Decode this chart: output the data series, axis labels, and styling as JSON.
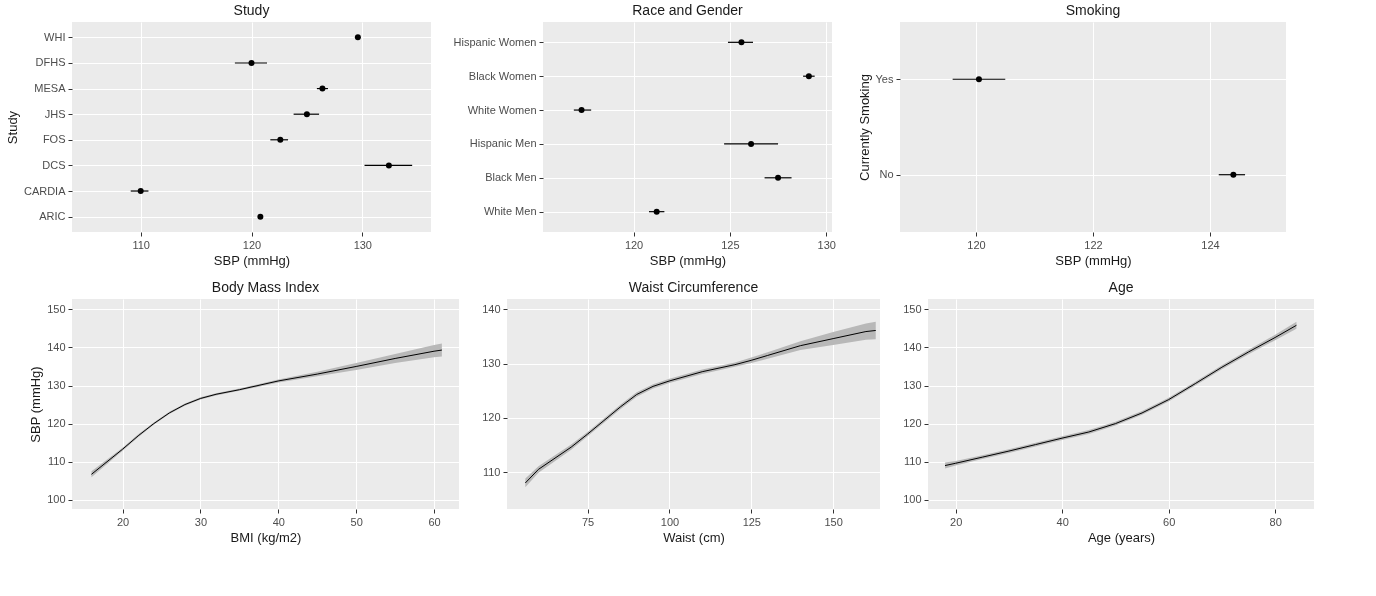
{
  "chart_data": [
    {
      "type": "scatter",
      "orientation": "horizontal",
      "title": "Study",
      "xlabel": "SBP (mmHg)",
      "ylabel": "Study",
      "categories": [
        "WHI",
        "DFHS",
        "MESA",
        "JHS",
        "FOS",
        "DCS",
        "CARDIA",
        "ARIC"
      ],
      "values": [
        129.6,
        120.0,
        126.4,
        125.0,
        122.6,
        132.4,
        110.0,
        120.8
      ],
      "errors": [
        [
          129.4,
          129.8
        ],
        [
          118.5,
          121.4
        ],
        [
          125.9,
          126.9
        ],
        [
          123.8,
          126.1
        ],
        [
          121.7,
          123.3
        ],
        [
          130.2,
          134.5
        ],
        [
          109.1,
          110.7
        ],
        [
          120.6,
          121.0
        ]
      ],
      "color": "#000000",
      "marker": "circle",
      "xlim": [
        103.8,
        136.2
      ],
      "xticks": [
        110,
        120,
        130
      ],
      "grid": true
    },
    {
      "type": "scatter",
      "orientation": "horizontal",
      "title": "Race and Gender",
      "xlabel": "SBP (mmHg)",
      "categories": [
        "Hispanic Women",
        "Black Women",
        "White Women",
        "Hispanic Men",
        "Black Men",
        "White Men"
      ],
      "values": [
        125.6,
        129.1,
        117.3,
        126.1,
        127.5,
        121.2
      ],
      "errors": [
        [
          124.9,
          126.2
        ],
        [
          128.8,
          129.4
        ],
        [
          116.9,
          117.8
        ],
        [
          124.7,
          127.5
        ],
        [
          126.8,
          128.2
        ],
        [
          120.8,
          121.6
        ]
      ],
      "color": "#000000",
      "marker": "circle",
      "xlim": [
        115.3,
        130.3
      ],
      "xticks": [
        120,
        125,
        130
      ],
      "grid": true
    },
    {
      "type": "scatter",
      "orientation": "horizontal",
      "title": "Smoking",
      "xlabel": "SBP (mmHg)",
      "ylabel": "Currently Smoking",
      "categories": [
        "Yes",
        "No"
      ],
      "values": [
        120.05,
        124.4
      ],
      "errors": [
        [
          119.6,
          120.5
        ],
        [
          124.15,
          124.6
        ]
      ],
      "color": "#000000",
      "marker": "circle",
      "xlim": [
        118.7,
        125.3
      ],
      "xticks": [
        120,
        122,
        124
      ],
      "grid": true
    },
    {
      "type": "line",
      "title": "Body Mass Index",
      "xlabel": "BMI (kg/m2)",
      "ylabel": "SBP (mmHg)",
      "x": [
        16,
        18,
        20,
        22,
        24,
        26,
        28,
        30,
        32,
        35,
        40,
        45,
        50,
        55,
        60,
        61
      ],
      "series": [
        {
          "color": "#000000",
          "values": [
            106.7,
            110,
            113.3,
            116.8,
            120,
            122.8,
            125,
            126.6,
            127.7,
            128.9,
            131.2,
            133,
            135,
            137.1,
            139,
            139.3
          ],
          "lower": [
            105.9,
            109.4,
            112.9,
            116.4,
            119.7,
            122.5,
            124.7,
            126.3,
            127.4,
            128.6,
            130.8,
            132.4,
            134.1,
            135.9,
            137.4,
            137.6
          ],
          "upper": [
            107.5,
            110.6,
            113.7,
            117.2,
            120.3,
            123.1,
            125.3,
            126.9,
            128,
            129.2,
            131.6,
            133.6,
            135.9,
            138.3,
            140.6,
            141
          ]
        }
      ],
      "xlim": [
        13.5,
        63.2
      ],
      "ylim": [
        97.6,
        152.7
      ],
      "xticks": [
        20,
        30,
        40,
        50,
        60
      ],
      "yticks": [
        100,
        110,
        120,
        130,
        140,
        150
      ],
      "grid": true
    },
    {
      "type": "line",
      "title": "Waist Circumference",
      "xlabel": "Waist (cm)",
      "x": [
        56,
        60,
        70,
        75,
        80,
        85,
        90,
        95,
        100,
        110,
        120,
        125,
        130,
        140,
        150,
        160,
        163
      ],
      "series": [
        {
          "color": "#000000",
          "values": [
            108,
            110.5,
            114.6,
            117,
            119.5,
            122,
            124.3,
            125.8,
            126.8,
            128.5,
            129.8,
            130.6,
            131.5,
            133.3,
            134.6,
            135.9,
            136.1
          ],
          "lower": [
            107.2,
            109.9,
            114.1,
            116.6,
            119.1,
            121.6,
            123.9,
            125.4,
            126.4,
            128.1,
            129.4,
            130.1,
            130.9,
            132.5,
            133.4,
            134.4,
            134.5
          ],
          "upper": [
            108.8,
            111.1,
            115.1,
            117.4,
            119.9,
            122.4,
            124.7,
            126.2,
            127.2,
            128.9,
            130.2,
            131.1,
            132.1,
            134.1,
            135.8,
            137.4,
            137.7
          ]
        }
      ],
      "xlim": [
        50.4,
        164.3
      ],
      "ylim": [
        103.2,
        141.9
      ],
      "xticks": [
        75,
        100,
        125,
        150
      ],
      "yticks": [
        110,
        120,
        130,
        140
      ],
      "grid": true
    },
    {
      "type": "line",
      "title": "Age",
      "xlabel": "Age (years)",
      "x": [
        18,
        20,
        25,
        30,
        35,
        40,
        45,
        50,
        55,
        60,
        65,
        70,
        75,
        80,
        84
      ],
      "series": [
        {
          "color": "#000000",
          "values": [
            109,
            109.6,
            111.2,
            112.8,
            114.5,
            116.2,
            117.8,
            120,
            122.8,
            126.3,
            130.5,
            134.8,
            138.8,
            142.6,
            145.8
          ],
          "lower": [
            108.2,
            109,
            110.7,
            112.3,
            114,
            115.7,
            117.3,
            119.5,
            122.3,
            125.8,
            130,
            134.3,
            138.2,
            141.9,
            144.9
          ],
          "upper": [
            109.8,
            110.2,
            111.7,
            113.3,
            115,
            116.7,
            118.3,
            120.5,
            123.3,
            126.8,
            131,
            135.3,
            139.4,
            143.3,
            146.7
          ]
        }
      ],
      "xlim": [
        14.8,
        87.3
      ],
      "ylim": [
        97.6,
        152.7
      ],
      "xticks": [
        20,
        40,
        60,
        80
      ],
      "yticks": [
        100,
        110,
        120,
        130,
        140,
        150
      ],
      "grid": true
    }
  ]
}
